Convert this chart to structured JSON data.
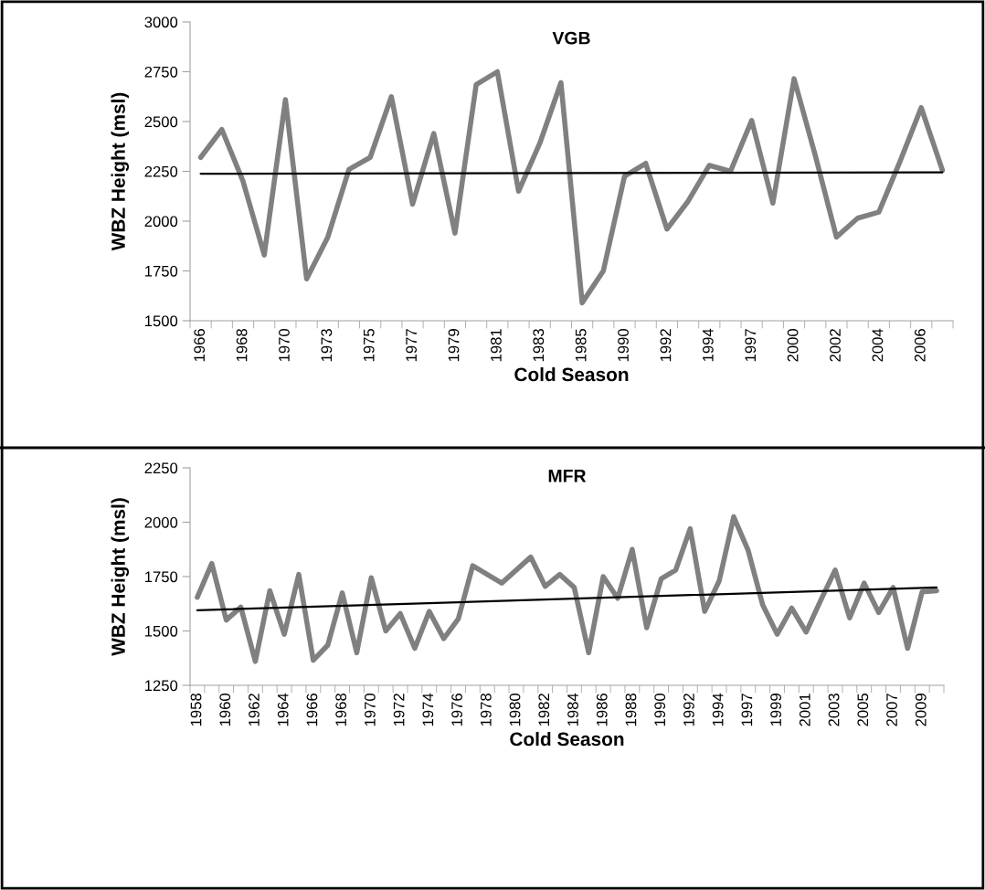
{
  "chart_data": [
    {
      "type": "line",
      "title": "VGB",
      "xlabel": "Cold Season",
      "ylabel": "WBZ Height (msl)",
      "categories": [
        "1966",
        null,
        "1968",
        null,
        "1970",
        null,
        "1973",
        null,
        "1975",
        null,
        "1977",
        null,
        "1979",
        null,
        "1981",
        null,
        "1983",
        null,
        "1985",
        null,
        "1990",
        null,
        "1992",
        null,
        "1994",
        null,
        "1997",
        null,
        "2000",
        null,
        "2002",
        null,
        "2004",
        null,
        "2006",
        null
      ],
      "ylim": [
        1500,
        3000
      ],
      "yticks": [
        1500,
        1750,
        2000,
        2250,
        2500,
        2750,
        3000
      ],
      "grid": false,
      "legend": false,
      "series": [
        {
          "color": "#808080",
          "values": [
            2320,
            2460,
            2200,
            1830,
            2610,
            1710,
            1920,
            2260,
            2320,
            2625,
            2085,
            2440,
            1940,
            2685,
            2750,
            2150,
            2390,
            2695,
            1590,
            1750,
            2225,
            2290,
            1960,
            2100,
            2280,
            2250,
            2505,
            2090,
            2715,
            2330,
            1920,
            2015,
            2045,
            2300,
            2570,
            2255
          ]
        },
        {
          "color": "#000000",
          "values": [
            2238,
            null,
            null,
            null,
            null,
            null,
            null,
            null,
            null,
            null,
            null,
            null,
            null,
            null,
            null,
            null,
            null,
            null,
            null,
            null,
            null,
            null,
            null,
            null,
            null,
            null,
            null,
            null,
            null,
            null,
            null,
            null,
            null,
            null,
            null,
            2245
          ]
        }
      ]
    },
    {
      "type": "line",
      "title": "MFR",
      "xlabel": "Cold Season",
      "ylabel": "WBZ Height (msl)",
      "categories": [
        "1958",
        null,
        "1960",
        null,
        "1962",
        null,
        "1964",
        null,
        "1966",
        null,
        "1968",
        null,
        "1970",
        null,
        "1972",
        null,
        "1974",
        null,
        "1976",
        null,
        "1978",
        null,
        "1980",
        null,
        "1982",
        null,
        "1984",
        null,
        "1986",
        null,
        "1988",
        null,
        "1990",
        null,
        "1992",
        null,
        "1994",
        null,
        "1997",
        null,
        "1999",
        null,
        "2001",
        null,
        "2003",
        null,
        "2005",
        null,
        "2007",
        null,
        "2009",
        null
      ],
      "ylim": [
        1250,
        2250
      ],
      "yticks": [
        1250,
        1500,
        1750,
        2000,
        2250
      ],
      "grid": false,
      "legend": false,
      "series": [
        {
          "color": "#808080",
          "values": [
            1655,
            1810,
            1550,
            1610,
            1360,
            1685,
            1485,
            1760,
            1365,
            1435,
            1675,
            1400,
            1745,
            1500,
            1580,
            1420,
            1590,
            1465,
            1555,
            1800,
            1760,
            1720,
            1780,
            1840,
            1705,
            1760,
            1700,
            1400,
            1750,
            1650,
            1875,
            1515,
            1740,
            1780,
            1970,
            1590,
            1730,
            2025,
            1870,
            1620,
            1485,
            1605,
            1495,
            1640,
            1780,
            1560,
            1720,
            1585,
            1700,
            1420,
            1680,
            1685
          ]
        },
        {
          "color": "#000000",
          "values": [
            1595,
            null,
            null,
            null,
            null,
            null,
            null,
            null,
            null,
            null,
            null,
            null,
            null,
            null,
            null,
            null,
            null,
            null,
            null,
            null,
            null,
            null,
            null,
            null,
            null,
            null,
            null,
            null,
            null,
            null,
            null,
            null,
            null,
            null,
            null,
            null,
            null,
            null,
            null,
            null,
            null,
            null,
            null,
            null,
            null,
            null,
            null,
            null,
            null,
            null,
            null,
            1700
          ]
        }
      ]
    }
  ]
}
